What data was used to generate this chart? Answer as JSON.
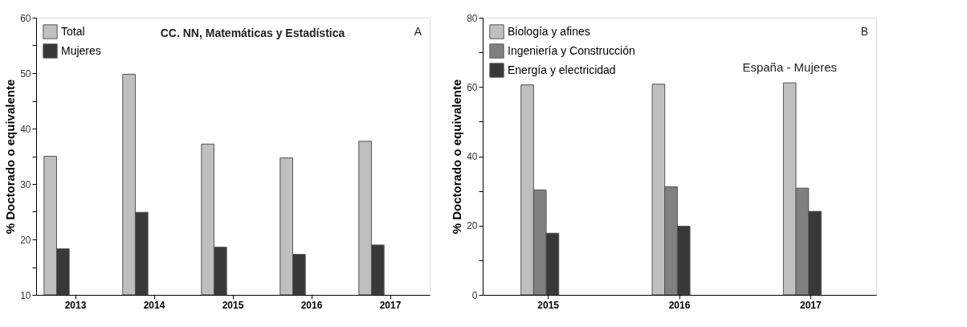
{
  "chart_data": [
    {
      "type": "bar",
      "categories": [
        "2013",
        "2014",
        "2015",
        "2016",
        "2017"
      ],
      "ylabel": "% Doctorado o equivalente",
      "series": [
        {
          "name": "Total",
          "color": "#bfbfbf",
          "values": [
            35.0,
            49.8,
            37.2,
            34.7,
            37.7
          ]
        },
        {
          "name": "Mujeres",
          "color": "#383838",
          "values": [
            18.3,
            24.9,
            18.6,
            17.3,
            19.0
          ]
        }
      ],
      "ylim": [
        10,
        60
      ],
      "yticks": [
        10,
        {
          "value": 15,
          "label": null
        },
        20,
        {
          "value": 25,
          "label": null
        },
        30,
        {
          "value": 35,
          "label": null
        },
        40,
        {
          "value": 45,
          "label": null
        },
        50,
        {
          "value": 55,
          "label": null
        },
        60
      ],
      "annotations": [
        "CC. NN, Matemáticas y Estadística",
        "A"
      ],
      "legend": "top left",
      "grid": false
    },
    {
      "type": "bar",
      "categories": [
        "2015",
        "2016",
        "2017"
      ],
      "ylabel": "% Doctorado o equivalente",
      "series": [
        {
          "name": "Biología y afines",
          "color": "#bfbfbf",
          "values": [
            60.6,
            60.8,
            61.2
          ]
        },
        {
          "name": "Ingeniería y Construcción",
          "color": "#808080",
          "values": [
            30.3,
            31.2,
            30.8
          ]
        },
        {
          "name": "Energía y electricidad",
          "color": "#383838",
          "values": [
            17.8,
            19.8,
            24.1
          ]
        }
      ],
      "ylim": [
        0,
        80
      ],
      "yticks": [
        0,
        {
          "value": 10,
          "label": null
        },
        20,
        {
          "value": 30,
          "label": null
        },
        40,
        {
          "value": 50,
          "label": null
        },
        60,
        {
          "value": 70,
          "label": null
        },
        80
      ],
      "annotations": [
        "B",
        "España - Mujeres"
      ],
      "legend": "top left",
      "grid": false
    }
  ]
}
